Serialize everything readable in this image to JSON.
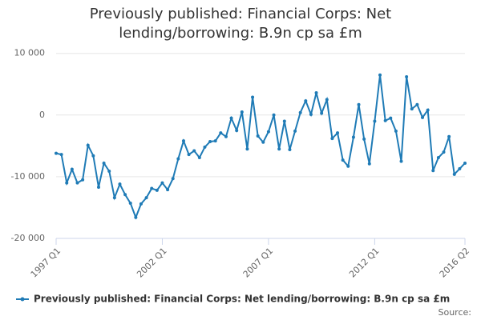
{
  "chart_data": {
    "type": "line",
    "title": "Previously published: Financial Corps: Net lending/borrowing: B.9n cp sa £m",
    "categories": [
      "1997 Q1",
      null,
      null,
      null,
      null,
      null,
      null,
      null,
      null,
      null,
      null,
      null,
      null,
      null,
      null,
      null,
      null,
      null,
      null,
      null,
      "2002 Q1",
      null,
      null,
      null,
      null,
      null,
      null,
      null,
      null,
      null,
      null,
      null,
      null,
      null,
      null,
      null,
      null,
      null,
      null,
      null,
      "2007 Q1",
      null,
      null,
      null,
      null,
      null,
      null,
      null,
      null,
      null,
      null,
      null,
      null,
      null,
      null,
      null,
      null,
      null,
      null,
      null,
      "2012 Q1",
      null,
      null,
      null,
      null,
      null,
      null,
      null,
      null,
      null,
      null,
      null,
      null,
      null,
      null,
      null,
      null,
      "2016 Q2"
    ],
    "series": [
      {
        "name": "Previously published: Financial Corps: Net lending/borrowing: B.9n cp sa £m",
        "color": "#1f7bb6",
        "values": [
          -6200,
          -6400,
          -11000,
          -8800,
          -11000,
          -10500,
          -4900,
          -6600,
          -11700,
          -7800,
          -9100,
          -13400,
          -11200,
          -12900,
          -14300,
          -16600,
          -14400,
          -13400,
          -11900,
          -12200,
          -11000,
          -12100,
          -10300,
          -7100,
          -4200,
          -6400,
          -5800,
          -6900,
          -5200,
          -4300,
          -4200,
          -2900,
          -3500,
          -500,
          -2500,
          500,
          -5500,
          2900,
          -3400,
          -4400,
          -2700,
          0,
          -5500,
          -1000,
          -5600,
          -2600,
          400,
          2300,
          100,
          3600,
          300,
          2500,
          -3800,
          -2900,
          -7300,
          -8300,
          -3600,
          1700,
          -3900,
          -7900,
          -1000,
          6500,
          -900,
          -500,
          -2600,
          -7500,
          6200,
          1000,
          1700,
          -400,
          800,
          -9000,
          -6900,
          -6000,
          -3500,
          -9600,
          -8700,
          -7800
        ]
      }
    ],
    "ylim": [
      -20000,
      11000
    ],
    "yticks": [
      {
        "value": -20000,
        "label": "-20 000"
      },
      {
        "value": -10000,
        "label": "-10 000"
      },
      0,
      {
        "value": 10000,
        "label": "10 000"
      }
    ],
    "grid": true,
    "source": "Source:"
  }
}
